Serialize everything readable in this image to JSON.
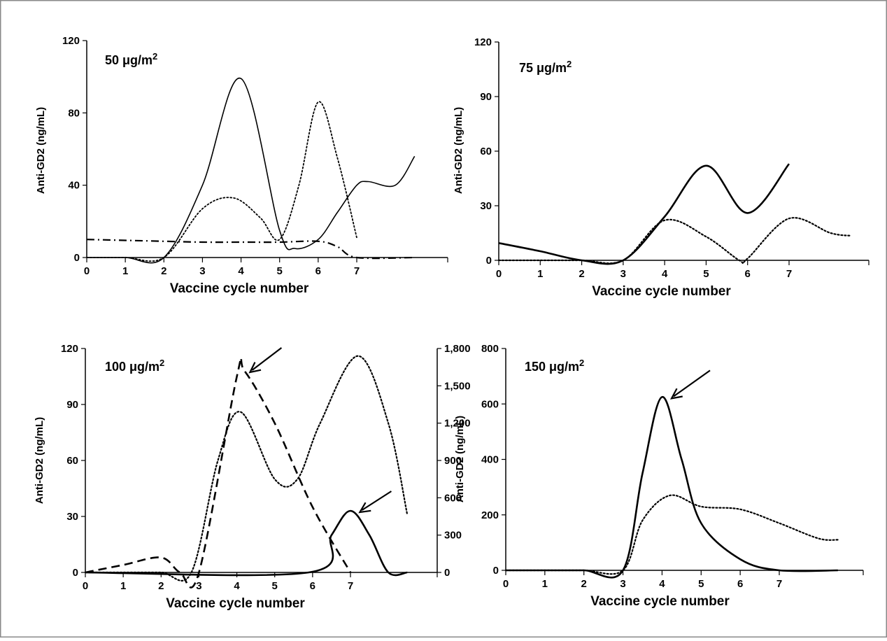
{
  "chart_data": [
    {
      "type": "line",
      "title": "50 μg/m",
      "title_superscript": "2",
      "xlabel": "Vaccine cycle number",
      "ylabel": "Anti-GD2 (ng/mL)",
      "xlim": [
        0,
        8.5
      ],
      "ylim": [
        0,
        120
      ],
      "x_ticks": [
        "0",
        "1",
        "2",
        "3",
        "4",
        "5",
        "6",
        "7"
      ],
      "y_ticks": [
        "0",
        "40",
        "80",
        "120"
      ],
      "grid": false,
      "series": [
        {
          "style": "solid",
          "width": 1.6,
          "points": [
            [
              0,
              0
            ],
            [
              1,
              0
            ],
            [
              2,
              0
            ],
            [
              3,
              40
            ],
            [
              4,
              99
            ],
            [
              5,
              15
            ],
            [
              5.4,
              5
            ],
            [
              6,
              10
            ],
            [
              6.5,
              25
            ],
            [
              7,
              40
            ],
            [
              7.3,
              42
            ],
            [
              8,
              40
            ],
            [
              8.5,
              56
            ]
          ]
        },
        {
          "style": "dotted",
          "width": 1.8,
          "points": [
            [
              0,
              0
            ],
            [
              1,
              0
            ],
            [
              2,
              0
            ],
            [
              3,
              27
            ],
            [
              3.8,
              33
            ],
            [
              4.5,
              22
            ],
            [
              5,
              10
            ],
            [
              5.5,
              40
            ],
            [
              6,
              86
            ],
            [
              6.5,
              55
            ],
            [
              7,
              11
            ]
          ]
        },
        {
          "style": "dashdot",
          "width": 2.2,
          "points": [
            [
              0,
              10
            ],
            [
              1,
              9.5
            ],
            [
              2,
              9
            ],
            [
              3,
              8.5
            ],
            [
              4,
              8.5
            ],
            [
              5,
              8.5
            ],
            [
              6,
              9
            ],
            [
              6.5,
              6
            ],
            [
              7,
              0
            ],
            [
              8.5,
              0
            ]
          ]
        }
      ]
    },
    {
      "type": "line",
      "title": "75 μg/m",
      "title_superscript": "2",
      "xlabel": "Vaccine cycle number",
      "ylabel": "Anti-GD2 (ng/mL)",
      "xlim": [
        0,
        8.5
      ],
      "ylim": [
        0,
        120
      ],
      "x_ticks": [
        "0",
        "1",
        "2",
        "3",
        "4",
        "5",
        "6",
        "7"
      ],
      "y_ticks": [
        "0",
        "30",
        "60",
        "90",
        "120"
      ],
      "grid": false,
      "series": [
        {
          "style": "solid",
          "width": 2.6,
          "points": [
            [
              0,
              9.5
            ],
            [
              1,
              5
            ],
            [
              2,
              0
            ],
            [
              3,
              0
            ],
            [
              4,
              24
            ],
            [
              5,
              52
            ],
            [
              6,
              26
            ],
            [
              7,
              53
            ]
          ]
        },
        {
          "style": "dotted",
          "width": 2.2,
          "points": [
            [
              0,
              0
            ],
            [
              1,
              0
            ],
            [
              2,
              0
            ],
            [
              3,
              0
            ],
            [
              4,
              22
            ],
            [
              5,
              13
            ],
            [
              5.8,
              0
            ],
            [
              6,
              1
            ],
            [
              7,
              23
            ],
            [
              8,
              15
            ],
            [
              8.5,
              13.5
            ]
          ]
        }
      ]
    },
    {
      "type": "line",
      "title": "100 μg/m",
      "title_superscript": "2",
      "xlabel": "Vaccine cycle number",
      "ylabel": "Anti-GD2 (ng/mL)",
      "xlim": [
        0,
        8.5
      ],
      "ylim": [
        0,
        120
      ],
      "y2lim": [
        0,
        1800
      ],
      "x_ticks": [
        "0",
        "1",
        "2",
        "3",
        "4",
        "5",
        "6",
        "7"
      ],
      "y_ticks": [
        "0",
        "30",
        "60",
        "90",
        "120"
      ],
      "y2_ticks": [
        "0",
        "300",
        "600",
        "900",
        "1,200",
        "1,500",
        "1,800"
      ],
      "grid": false,
      "series": [
        {
          "style": "dashed",
          "width": 2.6,
          "points": [
            [
              0,
              0
            ],
            [
              1,
              4
            ],
            [
              2,
              8
            ],
            [
              2.5,
              0
            ],
            [
              3,
              0
            ],
            [
              4,
              105
            ],
            [
              4.2,
              108
            ],
            [
              5,
              80
            ],
            [
              6,
              35
            ],
            [
              7,
              0
            ]
          ]
        },
        {
          "style": "dotted",
          "width": 2.2,
          "points": [
            [
              0,
              0
            ],
            [
              1,
              0
            ],
            [
              2,
              0
            ],
            [
              2.8,
              0
            ],
            [
              3.5,
              60
            ],
            [
              4.1,
              86
            ],
            [
              5,
              50
            ],
            [
              5.6,
              50
            ],
            [
              6.2,
              80
            ],
            [
              7.2,
              116
            ],
            [
              8,
              80
            ],
            [
              8.5,
              31
            ]
          ]
        },
        {
          "style": "solid",
          "width": 2.6,
          "points": [
            [
              0,
              0
            ],
            [
              5.9,
              0
            ],
            [
              6.5,
              20
            ],
            [
              7,
              33
            ],
            [
              7.5,
              20
            ],
            [
              8,
              0
            ],
            [
              8.5,
              0
            ]
          ]
        }
      ],
      "annotations": [
        {
          "type": "arrow",
          "target": [
            4.2,
            108
          ]
        },
        {
          "type": "arrow",
          "target": [
            7.1,
            33
          ]
        }
      ]
    },
    {
      "type": "line",
      "title": "150 μg/m",
      "title_superscript": "2",
      "xlabel": "Vaccine cycle number",
      "ylabel": "Anti-GD2 (ng/mL)",
      "xlim": [
        0,
        8.5
      ],
      "ylim": [
        0,
        800
      ],
      "x_ticks": [
        "0",
        "1",
        "2",
        "3",
        "4",
        "5",
        "6",
        "7"
      ],
      "y_ticks": [
        "0",
        "200",
        "400",
        "600",
        "800"
      ],
      "grid": false,
      "series": [
        {
          "style": "solid",
          "width": 2.6,
          "points": [
            [
              0,
              0
            ],
            [
              1,
              0
            ],
            [
              2,
              0
            ],
            [
              3,
              0
            ],
            [
              3.5,
              350
            ],
            [
              4,
              625
            ],
            [
              4.5,
              400
            ],
            [
              5,
              170
            ],
            [
              6,
              40
            ],
            [
              7,
              0
            ],
            [
              8.5,
              0
            ]
          ]
        },
        {
          "style": "dotted",
          "width": 2.2,
          "points": [
            [
              0,
              0
            ],
            [
              1,
              0
            ],
            [
              2,
              0
            ],
            [
              3,
              0
            ],
            [
              3.5,
              180
            ],
            [
              4.2,
              270
            ],
            [
              5,
              230
            ],
            [
              6,
              220
            ],
            [
              7,
              170
            ],
            [
              8,
              115
            ],
            [
              8.5,
              110
            ]
          ]
        }
      ],
      "annotations": [
        {
          "type": "arrow",
          "target": [
            4.1,
            625
          ]
        }
      ]
    }
  ]
}
